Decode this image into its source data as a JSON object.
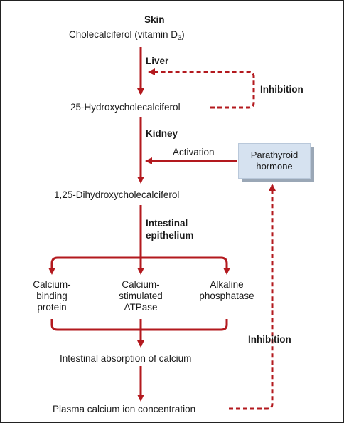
{
  "colors": {
    "arrow": "#b3191e",
    "box_fill": "#d6e2f0",
    "box_shadow": "#9aa7b6",
    "text": "#1a1a1a"
  },
  "nodes": {
    "skin": "Skin",
    "cholecalciferol": "Cholecalciferol (vitamin D",
    "cholecalciferol_sub": "3",
    "cholecalciferol_close": ")",
    "liver": "Liver",
    "hydroxy25": "25-Hydroxycholecalciferol",
    "kidney": "Kidney",
    "dihydroxy": "1,25-Dihydroxycholecalciferol",
    "intestinal_line1": "Intestinal",
    "intestinal_line2": "epithelium",
    "binding_line1": "Calcium-",
    "binding_line2": "binding",
    "binding_line3": "protein",
    "atpase_line1": "Calcium-",
    "atpase_line2": "stimulated",
    "atpase_line3": "ATPase",
    "alkaline_line1": "Alkaline",
    "alkaline_line2": "phosphatase",
    "absorption": "Intestinal absorption of calcium",
    "plasma": "Plasma calcium ion concentration"
  },
  "links": {
    "inhibition_top": "Inhibition",
    "activation": "Activation",
    "inhibition_bottom": "Inhibition"
  },
  "box": {
    "line1": "Parathyroid",
    "line2": "hormone"
  }
}
